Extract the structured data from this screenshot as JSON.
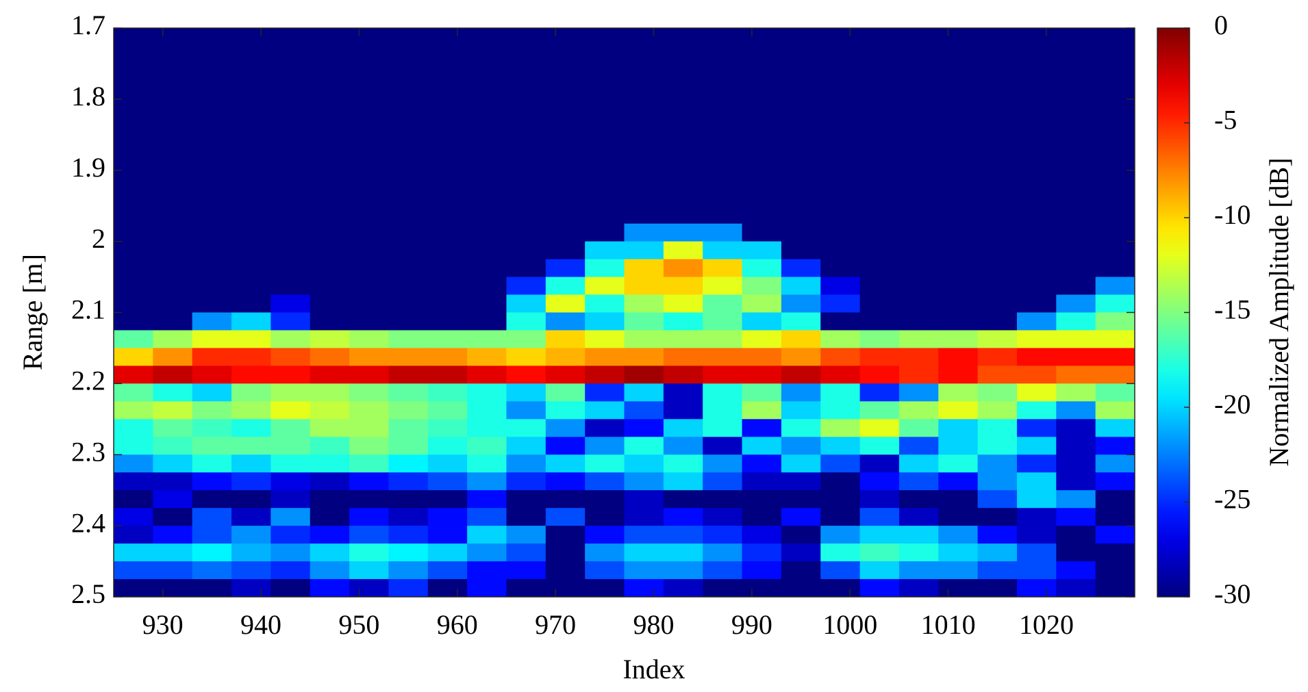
{
  "chart_data": {
    "type": "heatmap",
    "xlabel": "Index",
    "ylabel": "Range [m]",
    "colorbar_label": "Normalized Amplitude [dB]",
    "colormap": "jet",
    "xlim": [
      925,
      1029
    ],
    "ylim": [
      2.5,
      1.7
    ],
    "xticks": [
      930,
      940,
      950,
      960,
      970,
      980,
      990,
      1000,
      1010,
      1020
    ],
    "yticks": [
      1.7,
      1.8,
      1.9,
      2,
      2.1,
      2.2,
      2.3,
      2.4,
      2.5
    ],
    "clim": [
      -30,
      0
    ],
    "cticks": [
      0,
      -5,
      -10,
      -15,
      -20,
      -25,
      -30
    ],
    "x": [
      927,
      931,
      935,
      939,
      943,
      947,
      951,
      955,
      959,
      963,
      967,
      971,
      975,
      979,
      983,
      987,
      991,
      995,
      999,
      1003,
      1007,
      1011,
      1015,
      1019,
      1023,
      1027
    ],
    "y": [
      1.7125,
      1.7375,
      1.7625,
      1.7875,
      1.8125,
      1.8375,
      1.8625,
      1.8875,
      1.9125,
      1.9375,
      1.9625,
      1.9875,
      2.0125,
      2.0375,
      2.0625,
      2.0875,
      2.1125,
      2.1375,
      2.1625,
      2.1875,
      2.2125,
      2.2375,
      2.2625,
      2.2875,
      2.3125,
      2.3375,
      2.3625,
      2.3875,
      2.4125,
      2.4375,
      2.4625,
      2.4875
    ],
    "z": [
      [
        -30,
        -30,
        -30,
        -30,
        -30,
        -30,
        -30,
        -30,
        -30,
        -30,
        -30,
        -30,
        -30,
        -30,
        -30,
        -30,
        -30,
        -30,
        -30,
        -30,
        -30,
        -30,
        -30,
        -30,
        -30,
        -30
      ],
      [
        -30,
        -30,
        -30,
        -30,
        -30,
        -30,
        -30,
        -30,
        -30,
        -30,
        -30,
        -30,
        -30,
        -30,
        -30,
        -30,
        -30,
        -30,
        -30,
        -30,
        -30,
        -30,
        -30,
        -30,
        -30,
        -30
      ],
      [
        -30,
        -30,
        -30,
        -30,
        -30,
        -30,
        -30,
        -30,
        -30,
        -30,
        -30,
        -30,
        -30,
        -30,
        -30,
        -30,
        -30,
        -30,
        -30,
        -30,
        -30,
        -30,
        -30,
        -30,
        -30,
        -30
      ],
      [
        -30,
        -30,
        -30,
        -30,
        -30,
        -30,
        -30,
        -30,
        -30,
        -30,
        -30,
        -30,
        -30,
        -30,
        -30,
        -30,
        -30,
        -30,
        -30,
        -30,
        -30,
        -30,
        -30,
        -30,
        -30,
        -30
      ],
      [
        -30,
        -30,
        -30,
        -30,
        -30,
        -30,
        -30,
        -30,
        -30,
        -30,
        -30,
        -30,
        -30,
        -30,
        -30,
        -30,
        -30,
        -30,
        -30,
        -30,
        -30,
        -30,
        -30,
        -30,
        -30,
        -30
      ],
      [
        -30,
        -30,
        -30,
        -30,
        -30,
        -30,
        -30,
        -30,
        -30,
        -30,
        -30,
        -30,
        -30,
        -30,
        -30,
        -30,
        -30,
        -30,
        -30,
        -30,
        -30,
        -30,
        -30,
        -30,
        -30,
        -30
      ],
      [
        -30,
        -30,
        -30,
        -30,
        -30,
        -30,
        -30,
        -30,
        -30,
        -30,
        -30,
        -30,
        -30,
        -30,
        -30,
        -30,
        -30,
        -30,
        -30,
        -30,
        -30,
        -30,
        -30,
        -30,
        -30,
        -30
      ],
      [
        -30,
        -30,
        -30,
        -30,
        -30,
        -30,
        -30,
        -30,
        -30,
        -30,
        -30,
        -30,
        -30,
        -30,
        -30,
        -30,
        -30,
        -30,
        -30,
        -30,
        -30,
        -30,
        -30,
        -30,
        -30,
        -30
      ],
      [
        -30,
        -30,
        -30,
        -30,
        -30,
        -30,
        -30,
        -30,
        -30,
        -30,
        -30,
        -30,
        -30,
        -30,
        -30,
        -30,
        -30,
        -30,
        -30,
        -30,
        -30,
        -30,
        -30,
        -30,
        -30,
        -30
      ],
      [
        -30,
        -30,
        -30,
        -30,
        -30,
        -30,
        -30,
        -30,
        -30,
        -30,
        -30,
        -30,
        -30,
        -30,
        -30,
        -30,
        -30,
        -30,
        -30,
        -30,
        -30,
        -30,
        -30,
        -30,
        -30,
        -30
      ],
      [
        -30,
        -30,
        -30,
        -30,
        -30,
        -30,
        -30,
        -30,
        -30,
        -30,
        -30,
        -30,
        -30,
        -30,
        -30,
        -30,
        -30,
        -30,
        -30,
        -30,
        -30,
        -30,
        -30,
        -30,
        -30,
        -30
      ],
      [
        -30,
        -30,
        -30,
        -30,
        -30,
        -30,
        -30,
        -30,
        -30,
        -30,
        -30,
        -30,
        -30,
        -22,
        -22,
        -22,
        -30,
        -30,
        -30,
        -30,
        -30,
        -30,
        -30,
        -30,
        -30,
        -30
      ],
      [
        -30,
        -30,
        -30,
        -30,
        -30,
        -30,
        -30,
        -30,
        -30,
        -30,
        -30,
        -30,
        -20,
        -20,
        -12,
        -20,
        -20,
        -30,
        -30,
        -30,
        -30,
        -30,
        -30,
        -30,
        -30,
        -30
      ],
      [
        -30,
        -30,
        -30,
        -30,
        -30,
        -30,
        -30,
        -30,
        -30,
        -30,
        -30,
        -25,
        -18,
        -10,
        -8,
        -10,
        -18,
        -25,
        -30,
        -30,
        -30,
        -30,
        -30,
        -30,
        -30,
        -30
      ],
      [
        -30,
        -30,
        -30,
        -30,
        -30,
        -30,
        -30,
        -30,
        -30,
        -30,
        -25,
        -18,
        -12,
        -10,
        -10,
        -12,
        -15,
        -20,
        -27,
        -30,
        -30,
        -30,
        -30,
        -30,
        -30,
        -22
      ],
      [
        -30,
        -30,
        -30,
        -30,
        -27,
        -30,
        -30,
        -30,
        -30,
        -30,
        -20,
        -12,
        -18,
        -14,
        -12,
        -16,
        -14,
        -22,
        -25,
        -30,
        -30,
        -30,
        -30,
        -30,
        -22,
        -18
      ],
      [
        -30,
        -30,
        -22,
        -20,
        -25,
        -30,
        -30,
        -30,
        -30,
        -30,
        -18,
        -22,
        -20,
        -16,
        -18,
        -16,
        -20,
        -18,
        -30,
        -30,
        -30,
        -30,
        -30,
        -22,
        -18,
        -15
      ],
      [
        -16,
        -14,
        -12,
        -12,
        -14,
        -13,
        -14,
        -15,
        -15,
        -15,
        -15,
        -10,
        -12,
        -14,
        -14,
        -14,
        -12,
        -10,
        -14,
        -15,
        -14,
        -14,
        -13,
        -12,
        -12,
        -12
      ],
      [
        -10,
        -8,
        -5,
        -5,
        -6,
        -7,
        -8,
        -8,
        -8,
        -9,
        -10,
        -9,
        -8,
        -8,
        -7,
        -7,
        -7,
        -8,
        -6,
        -5,
        -5,
        -4,
        -5,
        -4,
        -4,
        -4
      ],
      [
        -3,
        -2,
        -3,
        -4,
        -4,
        -3,
        -3,
        -2,
        -2,
        -3,
        -4,
        -3,
        -2,
        -1,
        -2,
        -3,
        -3,
        -2,
        -3,
        -4,
        -5,
        -4,
        -6,
        -6,
        -7,
        -7
      ],
      [
        -16,
        -18,
        -20,
        -15,
        -14,
        -14,
        -15,
        -16,
        -17,
        -18,
        -20,
        -16,
        -25,
        -20,
        -28,
        -18,
        -16,
        -22,
        -18,
        -25,
        -22,
        -14,
        -15,
        -12,
        -14,
        -16
      ],
      [
        -14,
        -13,
        -15,
        -14,
        -12,
        -13,
        -14,
        -15,
        -16,
        -18,
        -22,
        -18,
        -20,
        -24,
        -28,
        -18,
        -14,
        -20,
        -18,
        -16,
        -14,
        -12,
        -14,
        -18,
        -22,
        -14
      ],
      [
        -18,
        -16,
        -17,
        -18,
        -16,
        -14,
        -14,
        -16,
        -17,
        -18,
        -18,
        -22,
        -28,
        -26,
        -20,
        -18,
        -26,
        -18,
        -14,
        -12,
        -16,
        -20,
        -18,
        -25,
        -28,
        -20
      ],
      [
        -18,
        -17,
        -16,
        -16,
        -16,
        -17,
        -15,
        -16,
        -18,
        -17,
        -20,
        -26,
        -22,
        -18,
        -22,
        -28,
        -20,
        -22,
        -20,
        -18,
        -24,
        -20,
        -18,
        -20,
        -28,
        -26
      ],
      [
        -22,
        -20,
        -18,
        -20,
        -18,
        -18,
        -17,
        -19,
        -20,
        -18,
        -22,
        -20,
        -18,
        -20,
        -18,
        -22,
        -26,
        -20,
        -24,
        -28,
        -20,
        -18,
        -22,
        -25,
        -28,
        -22
      ],
      [
        -28,
        -28,
        -26,
        -25,
        -27,
        -28,
        -26,
        -25,
        -24,
        -22,
        -25,
        -26,
        -24,
        -22,
        -20,
        -24,
        -28,
        -28,
        -30,
        -26,
        -24,
        -26,
        -22,
        -20,
        -28,
        -26
      ],
      [
        -30,
        -27,
        -30,
        -30,
        -28,
        -30,
        -30,
        -30,
        -30,
        -26,
        -30,
        -30,
        -30,
        -28,
        -30,
        -30,
        -30,
        -30,
        -30,
        -28,
        -30,
        -30,
        -24,
        -20,
        -22,
        -30
      ],
      [
        -27,
        -30,
        -24,
        -28,
        -22,
        -30,
        -26,
        -28,
        -26,
        -24,
        -30,
        -24,
        -30,
        -28,
        -26,
        -28,
        -30,
        -26,
        -30,
        -24,
        -28,
        -30,
        -30,
        -28,
        -26,
        -30
      ],
      [
        -28,
        -26,
        -24,
        -22,
        -25,
        -26,
        -24,
        -25,
        -26,
        -20,
        -22,
        -30,
        -26,
        -24,
        -24,
        -25,
        -27,
        -30,
        -22,
        -20,
        -20,
        -22,
        -26,
        -28,
        -30,
        -26
      ],
      [
        -20,
        -20,
        -19,
        -21,
        -22,
        -20,
        -18,
        -19,
        -20,
        -22,
        -24,
        -30,
        -22,
        -20,
        -20,
        -22,
        -25,
        -28,
        -18,
        -17,
        -18,
        -20,
        -21,
        -24,
        -30,
        -30
      ],
      [
        -24,
        -24,
        -23,
        -24,
        -25,
        -22,
        -20,
        -22,
        -24,
        -26,
        -26,
        -30,
        -24,
        -22,
        -22,
        -24,
        -26,
        -30,
        -24,
        -20,
        -22,
        -22,
        -24,
        -24,
        -26,
        -30
      ],
      [
        -30,
        -30,
        -30,
        -28,
        -30,
        -26,
        -28,
        -25,
        -30,
        -26,
        -30,
        -30,
        -30,
        -26,
        -28,
        -30,
        -30,
        -30,
        -30,
        -26,
        -28,
        -30,
        -30,
        -26,
        -28,
        -30
      ]
    ]
  }
}
